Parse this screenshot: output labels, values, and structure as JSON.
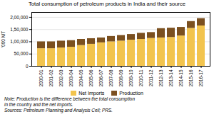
{
  "chart_data": {
    "type": "bar",
    "stacked": true,
    "title": "Total consumption of petroleum products in India and their source",
    "ylabel": "'000 MT",
    "categories": [
      "2000-01",
      "2001-02",
      "2002-03",
      "2003-04",
      "2004-05",
      "2005-06",
      "2006-07",
      "2007-08",
      "2008-09",
      "2009-10",
      "2010-11",
      "2011-12",
      "2012-13",
      "2013-14",
      "2014-15",
      "2015-16",
      "2016-17"
    ],
    "series": [
      {
        "name": "Net Imports",
        "color": "#F2C44E",
        "values": [
          72000,
          72000,
          75000,
          78000,
          85000,
          90000,
          96000,
          100000,
          103000,
          107000,
          110000,
          114000,
          116000,
          118000,
          124000,
          155000,
          165000
        ]
      },
      {
        "name": "Production",
        "color": "#7B5020",
        "values": [
          28000,
          28000,
          28000,
          27000,
          25000,
          23000,
          20000,
          22000,
          23000,
          23000,
          25000,
          24000,
          38000,
          38000,
          35000,
          28000,
          30000
        ]
      }
    ],
    "ylim": [
      0,
      220000
    ],
    "yticks": [
      0,
      {
        "value": 50000,
        "label": "50,000"
      },
      {
        "value": 100000,
        "label": "1,00,000"
      },
      {
        "value": 150000,
        "label": "1,50,000"
      },
      {
        "value": 200000,
        "label": "2,00,000"
      }
    ],
    "grid": true,
    "legend": "bottom",
    "annotations": [
      "Note: Production is the difference between the total consumption",
      "in the country and the net imports.",
      "Sources: Petroleum Planning and Analysis Cell; PRS."
    ]
  }
}
